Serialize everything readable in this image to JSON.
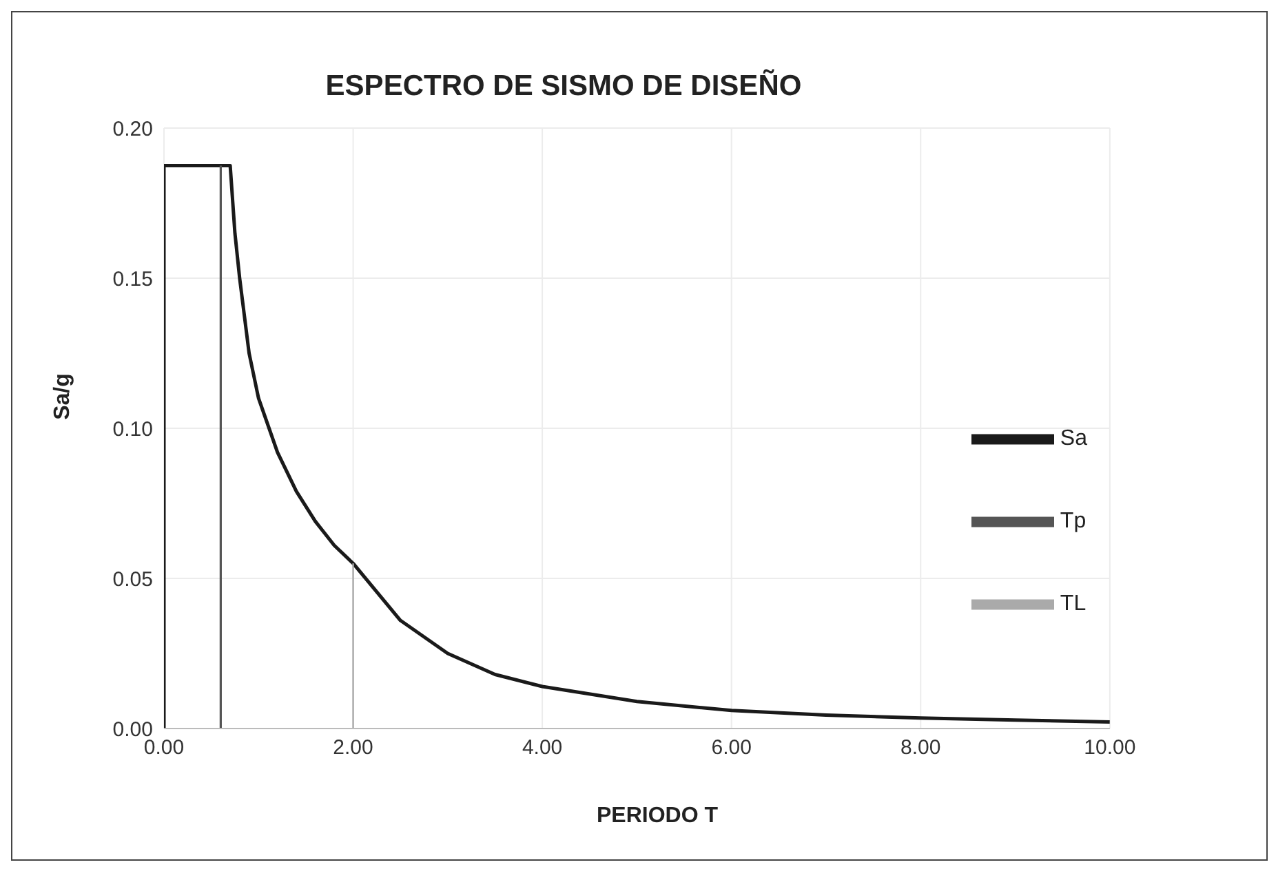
{
  "chart_data": {
    "type": "line",
    "title": "ESPECTRO DE SISMO DE DISEÑO",
    "xlabel": "PERIODO T",
    "ylabel": "Sa/g",
    "xlim": [
      0,
      10
    ],
    "ylim": [
      0,
      0.2
    ],
    "xticks": [
      {
        "value": 0,
        "label": "0.00"
      },
      {
        "value": 2,
        "label": "2.00"
      },
      {
        "value": 4,
        "label": "4.00"
      },
      {
        "value": 6,
        "label": "6.00"
      },
      {
        "value": 8,
        "label": "8.00"
      },
      {
        "value": 10,
        "label": "10.00"
      }
    ],
    "yticks": [
      {
        "value": 0,
        "label": "0.00"
      },
      {
        "value": 0.05,
        "label": "0.05"
      },
      {
        "value": 0.1,
        "label": "0.10"
      },
      {
        "value": 0.15,
        "label": "0.15"
      },
      {
        "value": 0.2,
        "label": "0.20"
      }
    ],
    "grid": true,
    "legend": "right",
    "marker": "none",
    "line_style": "solid",
    "series": [
      {
        "name": "Sa",
        "color": "#1a1a1a",
        "x": [
          0,
          0,
          0.7,
          0.75,
          0.8,
          0.9,
          1.0,
          1.2,
          1.4,
          1.6,
          1.8,
          2.0,
          2.5,
          3.0,
          3.5,
          4.0,
          5.0,
          6.0,
          7.0,
          8.0,
          9.0,
          10.0
        ],
        "values": [
          0,
          0.1875,
          0.1875,
          0.165,
          0.15,
          0.125,
          0.11,
          0.092,
          0.079,
          0.069,
          0.061,
          0.055,
          0.036,
          0.025,
          0.018,
          0.014,
          0.009,
          0.006,
          0.0045,
          0.0035,
          0.0028,
          0.0022
        ]
      },
      {
        "name": "Tp",
        "color": "#555555",
        "x": [
          0.6,
          0.6
        ],
        "values": [
          0,
          0.1875
        ]
      },
      {
        "name": "TL",
        "color": "#aaaaaa",
        "x": [
          2.0,
          2.0
        ],
        "values": [
          0,
          0.055
        ]
      }
    ]
  }
}
